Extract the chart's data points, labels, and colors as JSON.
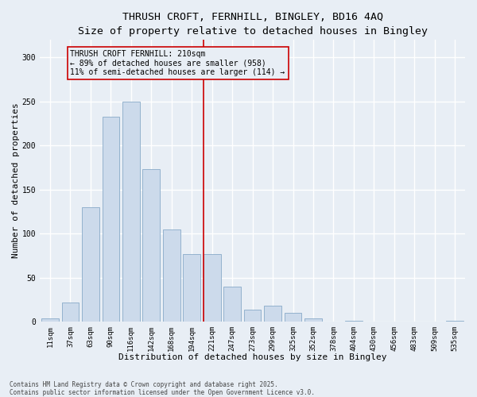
{
  "title": "THRUSH CROFT, FERNHILL, BINGLEY, BD16 4AQ",
  "subtitle": "Size of property relative to detached houses in Bingley",
  "xlabel": "Distribution of detached houses by size in Bingley",
  "ylabel": "Number of detached properties",
  "footer_line1": "Contains HM Land Registry data © Crown copyright and database right 2025.",
  "footer_line2": "Contains public sector information licensed under the Open Government Licence v3.0.",
  "categories": [
    "11sqm",
    "37sqm",
    "63sqm",
    "90sqm",
    "116sqm",
    "142sqm",
    "168sqm",
    "194sqm",
    "221sqm",
    "247sqm",
    "273sqm",
    "299sqm",
    "325sqm",
    "352sqm",
    "378sqm",
    "404sqm",
    "430sqm",
    "456sqm",
    "483sqm",
    "509sqm",
    "535sqm"
  ],
  "values": [
    4,
    22,
    130,
    233,
    250,
    173,
    105,
    77,
    77,
    40,
    14,
    18,
    10,
    4,
    0,
    1,
    0,
    0,
    0,
    0,
    1
  ],
  "bar_color": "#ccdaeb",
  "bar_edge_color": "#88aac8",
  "vline_color": "#cc0000",
  "annotation_title": "THRUSH CROFT FERNHILL: 210sqm",
  "annotation_line1": "← 89% of detached houses are smaller (958)",
  "annotation_line2": "11% of semi-detached houses are larger (114) →",
  "ylim": [
    0,
    320
  ],
  "yticks": [
    0,
    50,
    100,
    150,
    200,
    250,
    300
  ],
  "background_color": "#e8eef5",
  "grid_color": "#ffffff",
  "title_fontsize": 9.5,
  "subtitle_fontsize": 8.5,
  "axis_label_fontsize": 8,
  "tick_fontsize": 6.5,
  "annotation_fontsize": 7,
  "footer_fontsize": 5.5
}
